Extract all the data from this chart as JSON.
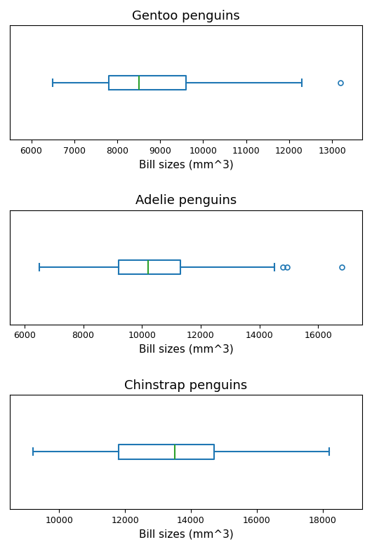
{
  "plots": [
    {
      "title": "Gentoo penguins",
      "whislo": 6500,
      "q1": 7800,
      "med": 8500,
      "q3": 9600,
      "whishi": 12300,
      "fliers": [
        13200
      ],
      "xlim": [
        5500,
        13700
      ],
      "xticks": [
        6000,
        7000,
        8000,
        9000,
        10000,
        11000,
        12000,
        13000
      ]
    },
    {
      "title": "Adelie penguins",
      "whislo": 6500,
      "q1": 9200,
      "med": 10200,
      "q3": 11300,
      "whishi": 14500,
      "fliers": [
        14800,
        14950,
        16800
      ],
      "xlim": [
        5500,
        17500
      ],
      "xticks": [
        6000,
        8000,
        10000,
        12000,
        14000,
        16000
      ]
    },
    {
      "title": "Chinstrap penguins",
      "whislo": 9200,
      "q1": 11800,
      "med": 13500,
      "q3": 14700,
      "whishi": 18200,
      "fliers": [],
      "xlim": [
        8500,
        19200
      ],
      "xticks": [
        10000,
        12000,
        14000,
        16000,
        18000
      ]
    }
  ],
  "xlabel": "Bill sizes (mm^3)",
  "box_color": "#1f77b4",
  "median_color": "#2ca02c",
  "flier_color": "#1f77b4",
  "title_fontsize": 13,
  "label_fontsize": 11,
  "tick_fontsize": 9,
  "box_width": 0.25,
  "linewidth": 1.5,
  "flier_markersize": 5
}
